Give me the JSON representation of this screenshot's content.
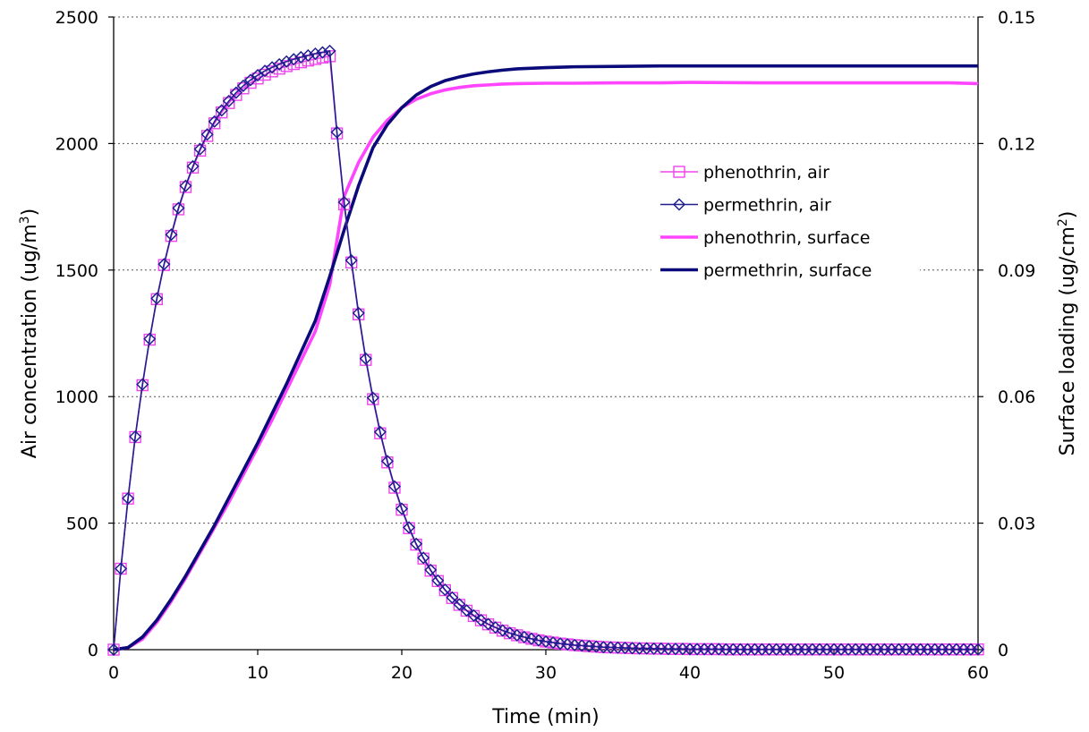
{
  "chart_data": {
    "type": "line",
    "xlabel": "Time (min)",
    "ylabel_left": {
      "main": "Air concentration (ug/m",
      "sup": "3",
      "end": ")"
    },
    "ylabel_right": {
      "main": "Surface loading (ug/cm",
      "sup": "2",
      "end": ")"
    },
    "xlim": [
      0,
      60
    ],
    "ylim_left": [
      0,
      2500
    ],
    "ylim_right": [
      0,
      0.15
    ],
    "x_ticks": [
      "0",
      "10",
      "20",
      "30",
      "40",
      "50",
      "60"
    ],
    "y_ticks_left": [
      "0",
      "500",
      "1000",
      "1500",
      "2000",
      "2500"
    ],
    "y_ticks_right": [
      "0",
      "0.03",
      "0.06",
      "0.09",
      "0.12",
      "0.15"
    ],
    "grid": "horizontal dotted",
    "legend_position": "right-center",
    "series": [
      {
        "name": "phenothrin, air",
        "axis": "left",
        "color": "#ee44ee",
        "marker": "square",
        "x": [
          0,
          0.5,
          1,
          1.5,
          2,
          2.5,
          3,
          3.5,
          4,
          4.5,
          5,
          5.5,
          6,
          6.5,
          7,
          7.5,
          8,
          8.5,
          9,
          9.5,
          10,
          10.5,
          11,
          11.5,
          12,
          12.5,
          13,
          13.5,
          14,
          14.5,
          15,
          15.5,
          16,
          16.5,
          17,
          17.5,
          18,
          18.5,
          19,
          19.5,
          20,
          20.5,
          21,
          21.5,
          22,
          22.5,
          23,
          23.5,
          24,
          24.5,
          25,
          25.5,
          26,
          26.5,
          27,
          27.5,
          28,
          28.5,
          29,
          29.5,
          30,
          30.5,
          31,
          31.5,
          32,
          32.5,
          33,
          33.5,
          34,
          34.5,
          35,
          35.5,
          36,
          36.5,
          37,
          37.5,
          38,
          38.5,
          39,
          39.5,
          40,
          40.5,
          41,
          41.5,
          42,
          42.5,
          43,
          43.5,
          44,
          44.5,
          45,
          45.5,
          46,
          46.5,
          47,
          47.5,
          48,
          48.5,
          49,
          49.5,
          50,
          50.5,
          51,
          51.5,
          52,
          52.5,
          53,
          53.5,
          54,
          54.5,
          55,
          55.5,
          56,
          56.5,
          57,
          57.5,
          58,
          58.5,
          59,
          59.5,
          60
        ],
        "y": [
          0,
          320,
          597,
          840,
          1045,
          1225,
          1385,
          1520,
          1635,
          1740,
          1828,
          1905,
          1972,
          2030,
          2080,
          2123,
          2160,
          2192,
          2218,
          2240,
          2257,
          2272,
          2285,
          2296,
          2306,
          2314,
          2321,
          2328,
          2334,
          2340,
          2345,
          2040,
          1760,
          1530,
          1325,
          1145,
          990,
          855,
          740,
          640,
          553,
          480,
          415,
          360,
          312,
          271,
          235,
          204,
          177,
          154,
          133,
          116,
          100,
          87,
          75,
          65,
          57,
          49,
          43,
          37,
          32,
          28,
          24,
          21,
          18,
          16,
          14,
          12,
          10,
          9,
          8,
          7,
          6,
          5,
          5,
          4,
          4,
          3,
          3,
          3,
          2,
          2,
          2,
          2,
          2,
          1,
          1,
          1,
          1,
          1,
          1,
          1,
          1,
          1,
          1,
          1,
          1,
          1,
          1,
          1,
          1,
          1,
          1,
          1,
          1,
          1,
          1,
          1,
          1,
          1,
          1,
          1,
          1,
          1,
          1,
          1,
          1,
          1,
          1,
          1,
          1
        ]
      },
      {
        "name": "permethrin, air",
        "axis": "left",
        "color": "#1f1f8f",
        "marker": "diamond",
        "x": [
          0,
          0.5,
          1,
          1.5,
          2,
          2.5,
          3,
          3.5,
          4,
          4.5,
          5,
          5.5,
          6,
          6.5,
          7,
          7.5,
          8,
          8.5,
          9,
          9.5,
          10,
          10.5,
          11,
          11.5,
          12,
          12.5,
          13,
          13.5,
          14,
          14.5,
          15,
          15.5,
          16,
          16.5,
          17,
          17.5,
          18,
          18.5,
          19,
          19.5,
          20,
          20.5,
          21,
          21.5,
          22,
          22.5,
          23,
          23.5,
          24,
          24.5,
          25,
          25.5,
          26,
          26.5,
          27,
          27.5,
          28,
          28.5,
          29,
          29.5,
          30,
          30.5,
          31,
          31.5,
          32,
          32.5,
          33,
          33.5,
          34,
          34.5,
          35,
          35.5,
          36,
          36.5,
          37,
          37.5,
          38,
          38.5,
          39,
          39.5,
          40,
          40.5,
          41,
          41.5,
          42,
          42.5,
          43,
          43.5,
          44,
          44.5,
          45,
          45.5,
          46,
          46.5,
          47,
          47.5,
          48,
          48.5,
          49,
          49.5,
          50,
          50.5,
          51,
          51.5,
          52,
          52.5,
          53,
          53.5,
          54,
          54.5,
          55,
          55.5,
          56,
          56.5,
          57,
          57.5,
          58,
          58.5,
          59,
          59.5,
          60
        ],
        "y": [
          0,
          320,
          598,
          842,
          1048,
          1228,
          1388,
          1523,
          1640,
          1745,
          1833,
          1910,
          1978,
          2036,
          2087,
          2131,
          2168,
          2201,
          2228,
          2251,
          2270,
          2287,
          2301,
          2313,
          2324,
          2333,
          2341,
          2348,
          2355,
          2360,
          2366,
          2045,
          1768,
          1538,
          1330,
          1150,
          995,
          860,
          745,
          645,
          557,
          483,
          418,
          363,
          315,
          273,
          237,
          206,
          179,
          155,
          135,
          117,
          101,
          88,
          76,
          66,
          57,
          50,
          43,
          37,
          32,
          28,
          24,
          21,
          18,
          16,
          14,
          12,
          10,
          9,
          8,
          7,
          6,
          5,
          5,
          4,
          4,
          3,
          3,
          3,
          2,
          2,
          2,
          2,
          2,
          1,
          1,
          1,
          1,
          1,
          1,
          1,
          1,
          1,
          1,
          1,
          1,
          1,
          1,
          1,
          1,
          1,
          1,
          1,
          1,
          1,
          1,
          1,
          1,
          1,
          1,
          1,
          1,
          1,
          1,
          1,
          1,
          1,
          1,
          1,
          1
        ]
      },
      {
        "name": "phenothrin, surface",
        "axis": "right",
        "color": "#ff44ff",
        "marker": "none",
        "x": [
          0,
          1,
          2,
          3,
          4,
          5,
          6,
          7,
          8,
          9,
          10,
          11,
          12,
          13,
          14,
          15,
          16,
          17,
          18,
          19,
          20,
          21,
          22,
          23,
          24,
          25,
          26,
          27,
          28,
          30,
          32,
          35,
          38,
          40,
          45,
          50,
          55,
          58,
          60
        ],
        "y": [
          0,
          0.0005,
          0.0025,
          0.0065,
          0.0115,
          0.017,
          0.023,
          0.029,
          0.035,
          0.0415,
          0.048,
          0.0545,
          0.0615,
          0.0685,
          0.0755,
          0.0865,
          0.1075,
          0.1155,
          0.1215,
          0.1255,
          0.1285,
          0.1305,
          0.1318,
          0.1327,
          0.1333,
          0.1337,
          0.1339,
          0.1341,
          0.1342,
          0.1343,
          0.1343,
          0.1344,
          0.1344,
          0.1345,
          0.1344,
          0.1344,
          0.1344,
          0.1344,
          0.1342
        ]
      },
      {
        "name": "permethrin, surface",
        "axis": "right",
        "color": "#0a0a7a",
        "marker": "none",
        "x": [
          0,
          1,
          2,
          3,
          4,
          5,
          6,
          7,
          8,
          9,
          10,
          11,
          12,
          13,
          14,
          15,
          16,
          17,
          18,
          19,
          20,
          21,
          22,
          23,
          24,
          25,
          26,
          27,
          28,
          30,
          32,
          35,
          38,
          40,
          45,
          50,
          55,
          58,
          60
        ],
        "y": [
          0,
          0.0005,
          0.003,
          0.007,
          0.012,
          0.0175,
          0.0235,
          0.0295,
          0.036,
          0.0425,
          0.049,
          0.056,
          0.063,
          0.0705,
          0.078,
          0.0885,
          0.0995,
          0.11,
          0.119,
          0.1245,
          0.1285,
          0.1315,
          0.1335,
          0.1349,
          0.1358,
          0.1365,
          0.137,
          0.1374,
          0.1377,
          0.138,
          0.1382,
          0.1383,
          0.1384,
          0.1384,
          0.1384,
          0.1384,
          0.1384,
          0.1384,
          0.1384
        ]
      }
    ]
  }
}
